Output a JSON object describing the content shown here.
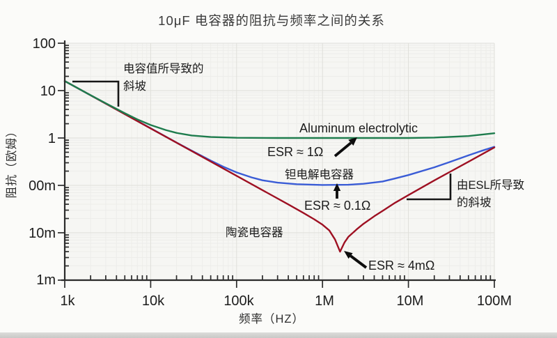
{
  "chart_data": {
    "type": "line",
    "title": "10μF 电容器的阻抗与频率之间的关系",
    "xlabel": "频率（HZ）",
    "ylabel": "阻抗（欧姆）",
    "x_scale": "log",
    "y_scale": "log",
    "x_range_hz": [
      1000,
      100000000
    ],
    "y_range_ohm": [
      0.001,
      100
    ],
    "grid": true,
    "x_ticks": [
      "1k",
      "10k",
      "100k",
      "1M",
      "10M",
      "100M"
    ],
    "y_ticks": [
      "100",
      "10",
      "1",
      "00m",
      "10m",
      "1m"
    ],
    "annotations": {
      "cap_slope": [
        "电容值所导致的",
        "斜坡"
      ],
      "esl_slope": [
        "由ESL所导致",
        "的斜坡"
      ]
    },
    "series": [
      {
        "name": "Aluminum electrolytic",
        "esr_label": "ESR ≈ 1Ω",
        "color": "#1e7c4d",
        "points": [
          [
            1000,
            15.9
          ],
          [
            2000,
            8.0
          ],
          [
            3000,
            5.4
          ],
          [
            5000,
            3.33
          ],
          [
            7000,
            2.47
          ],
          [
            10000,
            1.88
          ],
          [
            15000,
            1.47
          ],
          [
            20000,
            1.28
          ],
          [
            30000,
            1.13
          ],
          [
            50000,
            1.05
          ],
          [
            100000,
            1.01
          ],
          [
            300000,
            1.0
          ],
          [
            1000000,
            1.0
          ],
          [
            3000000,
            1.0
          ],
          [
            10000000,
            1.0
          ],
          [
            20000000,
            1.02
          ],
          [
            50000000,
            1.1
          ],
          [
            100000000,
            1.26
          ]
        ]
      },
      {
        "name": "钽电解电容器",
        "esr_label": "ESR ≈ 0.1Ω",
        "color": "#3a5cd6",
        "points": [
          [
            1000,
            15.9
          ],
          [
            2000,
            7.96
          ],
          [
            5000,
            3.19
          ],
          [
            10000,
            1.6
          ],
          [
            20000,
            0.8
          ],
          [
            30000,
            0.54
          ],
          [
            50000,
            0.333
          ],
          [
            70000,
            0.248
          ],
          [
            100000,
            0.188
          ],
          [
            150000,
            0.147
          ],
          [
            200000,
            0.128
          ],
          [
            300000,
            0.114
          ],
          [
            500000,
            0.106
          ],
          [
            1000000,
            0.102
          ],
          [
            2000000,
            0.103
          ],
          [
            3000000,
            0.108
          ],
          [
            5000000,
            0.121
          ],
          [
            7000000,
            0.14
          ],
          [
            10000000,
            0.165
          ],
          [
            20000000,
            0.24
          ],
          [
            30000000,
            0.31
          ],
          [
            50000000,
            0.43
          ],
          [
            70000000,
            0.53
          ],
          [
            100000000,
            0.65
          ]
        ]
      },
      {
        "name": "陶瓷电容器",
        "esr_label": "ESR ≈ 4mΩ",
        "color": "#9e1022",
        "points": [
          [
            1000,
            15.9
          ],
          [
            3000,
            5.3
          ],
          [
            10000,
            1.59
          ],
          [
            30000,
            0.53
          ],
          [
            100000,
            0.159
          ],
          [
            200000,
            0.0795
          ],
          [
            400000,
            0.0397
          ],
          [
            600000,
            0.0262
          ],
          [
            800000,
            0.0193
          ],
          [
            1000000,
            0.0148
          ],
          [
            1200000,
            0.0112
          ],
          [
            1400000,
            0.0072
          ],
          [
            1600000,
            0.004
          ],
          [
            1800000,
            0.0062
          ],
          [
            2000000,
            0.0082
          ],
          [
            2500000,
            0.0118
          ],
          [
            3000000,
            0.0155
          ],
          [
            4000000,
            0.0223
          ],
          [
            5000000,
            0.029
          ],
          [
            7000000,
            0.043
          ],
          [
            10000000,
            0.0625
          ],
          [
            20000000,
            0.127
          ],
          [
            30000000,
            0.19
          ],
          [
            50000000,
            0.315
          ],
          [
            100000000,
            0.63
          ]
        ]
      }
    ]
  }
}
